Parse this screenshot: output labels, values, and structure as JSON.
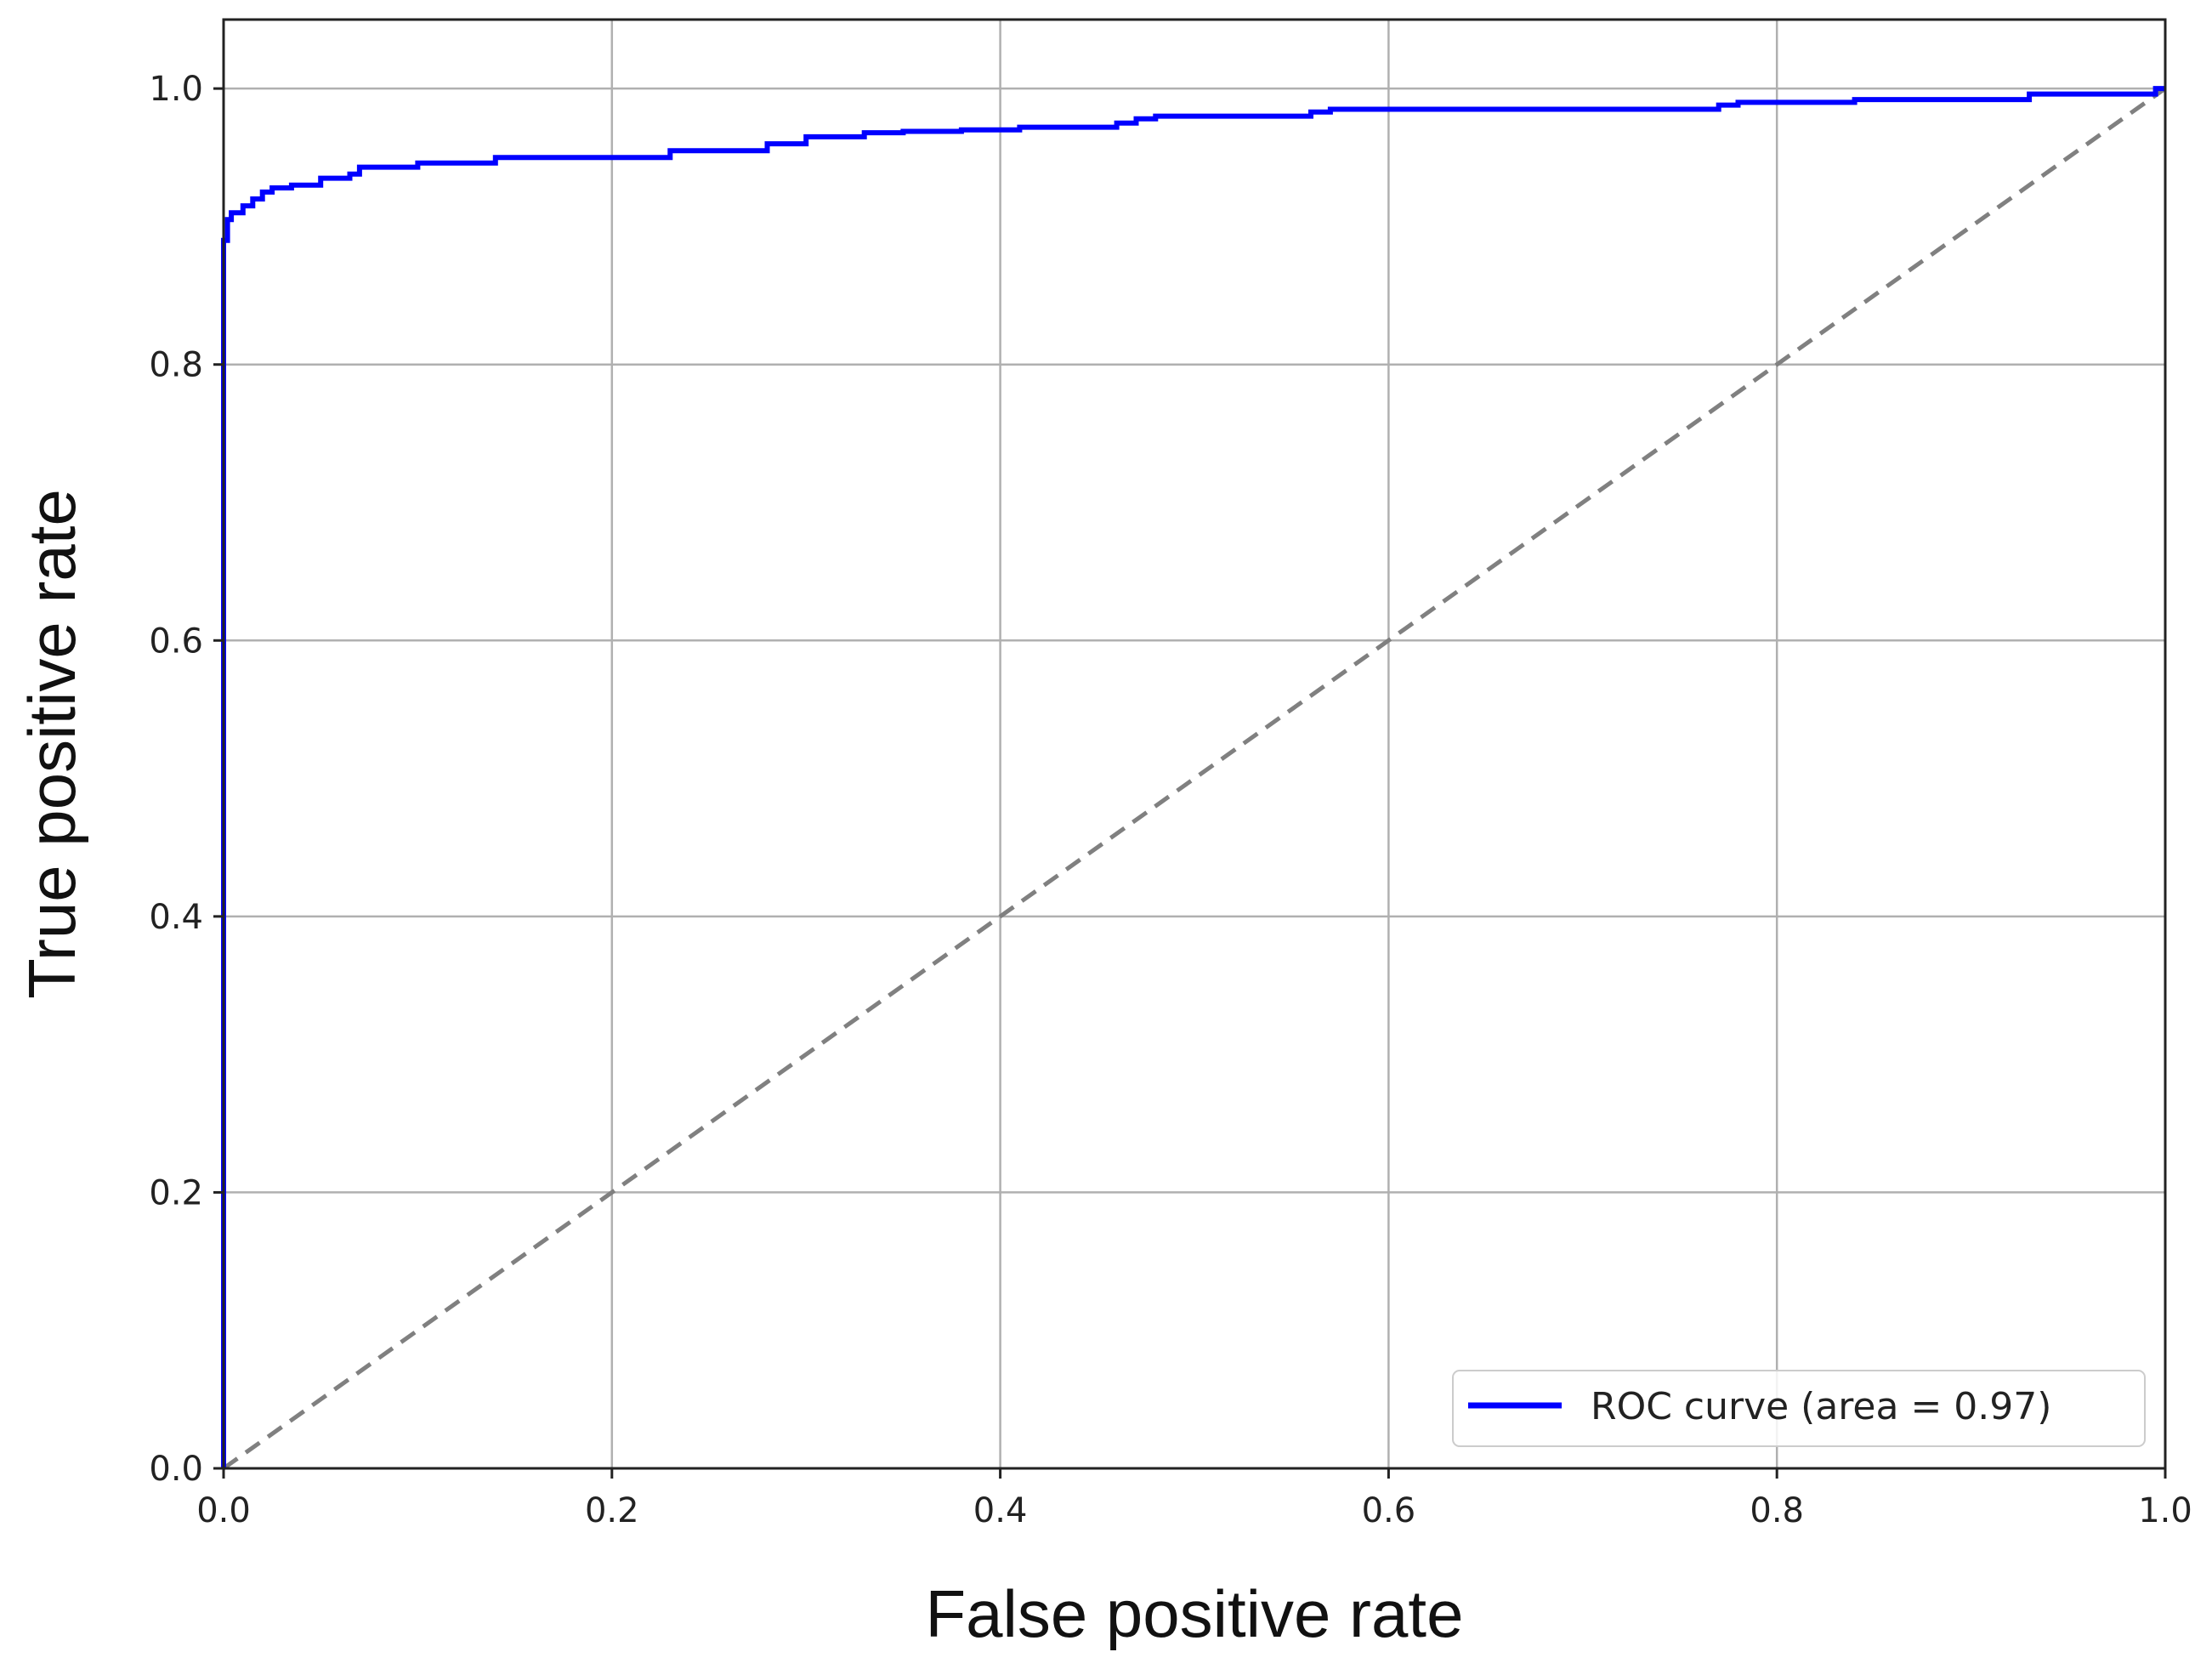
{
  "chart_data": {
    "type": "line",
    "title": "",
    "xlabel": "False positive rate",
    "ylabel": "True positive rate",
    "xlim": [
      0.0,
      1.0
    ],
    "ylim": [
      0.0,
      1.05
    ],
    "xticks": [
      "0.0",
      "0.2",
      "0.4",
      "0.6",
      "0.8",
      "1.0"
    ],
    "yticks": [
      "0.0",
      "0.2",
      "0.4",
      "0.6",
      "0.8",
      "1.0"
    ],
    "grid": true,
    "legend": {
      "placement": "lower-right",
      "entries": [
        "ROC curve (area = 0.97)"
      ]
    },
    "series": [
      {
        "name": "ROC curve (area = 0.97)",
        "color": "#0000ff",
        "style": "solid",
        "x": [
          0.0,
          0.0,
          0.002,
          0.002,
          0.004,
          0.004,
          0.01,
          0.01,
          0.015,
          0.015,
          0.02,
          0.02,
          0.025,
          0.025,
          0.035,
          0.035,
          0.05,
          0.05,
          0.052,
          0.052,
          0.065,
          0.065,
          0.07,
          0.07,
          0.1,
          0.1,
          0.14,
          0.14,
          0.23,
          0.23,
          0.28,
          0.28,
          0.3,
          0.3,
          0.33,
          0.33,
          0.35,
          0.35,
          0.38,
          0.38,
          0.41,
          0.41,
          0.46,
          0.46,
          0.47,
          0.47,
          0.48,
          0.48,
          0.56,
          0.56,
          0.57,
          0.57,
          0.77,
          0.77,
          0.78,
          0.78,
          0.84,
          0.84,
          0.93,
          0.93,
          0.995,
          0.995,
          1.0
        ],
        "y": [
          0.0,
          0.89,
          0.89,
          0.905,
          0.905,
          0.91,
          0.91,
          0.915,
          0.915,
          0.92,
          0.92,
          0.925,
          0.925,
          0.928,
          0.928,
          0.93,
          0.93,
          0.935,
          0.935,
          0.935,
          0.935,
          0.938,
          0.938,
          0.943,
          0.943,
          0.946,
          0.946,
          0.95,
          0.95,
          0.955,
          0.955,
          0.96,
          0.96,
          0.965,
          0.965,
          0.968,
          0.968,
          0.969,
          0.969,
          0.97,
          0.97,
          0.972,
          0.972,
          0.975,
          0.975,
          0.978,
          0.978,
          0.98,
          0.98,
          0.983,
          0.983,
          0.985,
          0.985,
          0.988,
          0.988,
          0.99,
          0.99,
          0.992,
          0.992,
          0.996,
          0.996,
          1.0,
          1.0
        ]
      },
      {
        "name": "",
        "color": "#808080",
        "style": "dashed",
        "x": [
          0.0,
          1.0
        ],
        "y": [
          0.0,
          1.0
        ]
      }
    ]
  }
}
